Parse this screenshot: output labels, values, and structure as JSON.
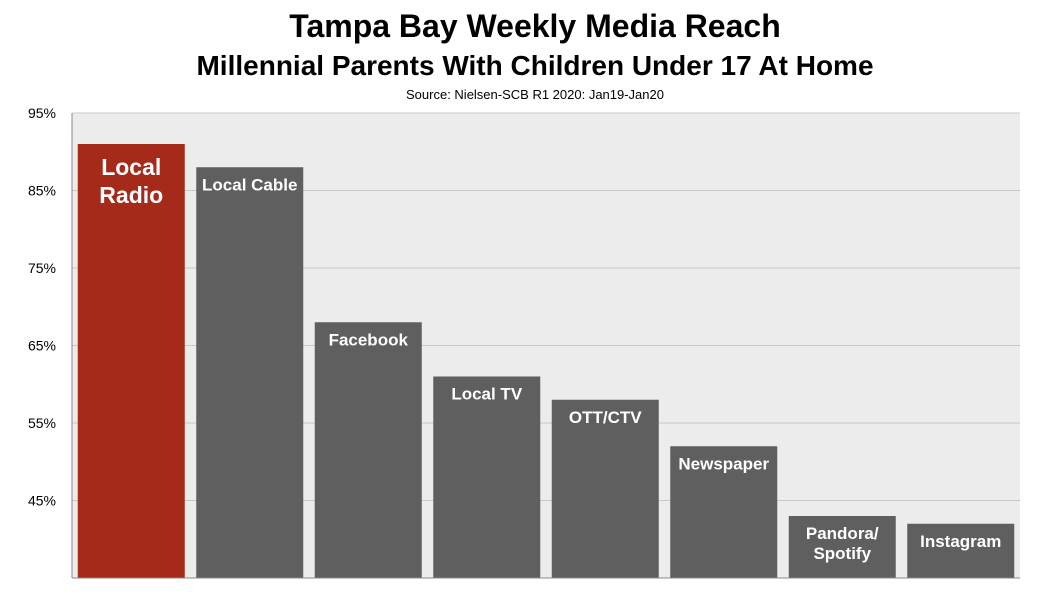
{
  "chart_data": {
    "type": "bar",
    "title": "Tampa Bay Weekly Media Reach",
    "subtitle": "Millennial Parents With Children Under 17 At Home",
    "source": "Source: Nielsen-SCB R1 2020: Jan19-Jan20",
    "categories": [
      [
        "Local",
        "Radio"
      ],
      [
        "Local Cable"
      ],
      [
        "Facebook"
      ],
      [
        "Local TV"
      ],
      [
        "OTT/CTV"
      ],
      [
        "Newspaper"
      ],
      [
        "Pandora/",
        "Spotify"
      ],
      [
        "Instagram"
      ]
    ],
    "values": [
      91,
      88,
      68,
      61,
      58,
      52,
      43,
      42
    ],
    "colors": [
      "#a52a1a",
      "#5f5f5f",
      "#5f5f5f",
      "#5f5f5f",
      "#5f5f5f",
      "#5f5f5f",
      "#5f5f5f",
      "#5f5f5f"
    ],
    "ylim": [
      35,
      95
    ],
    "yticks": [
      "95%",
      "85%",
      "75%",
      "65%",
      "55%",
      "45%"
    ],
    "ytick_values": [
      95,
      85,
      75,
      65,
      55,
      45
    ],
    "grid": true,
    "plot_background": "#ececec",
    "grid_color": "#c8c8c8"
  }
}
